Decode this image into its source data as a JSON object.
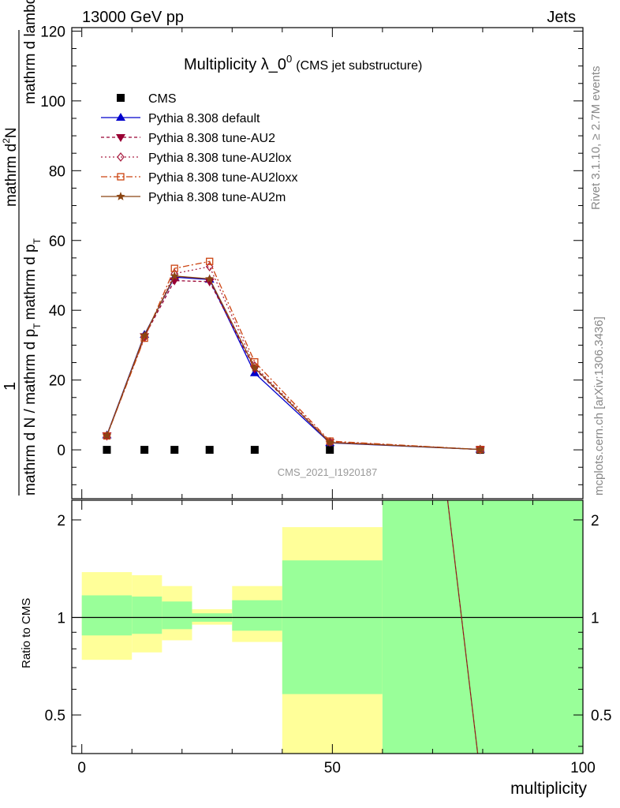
{
  "header": {
    "left": "13000 GeV pp",
    "right": "Jets"
  },
  "side_labels": {
    "rivet": "Rivet 3.1.10, ≥ 2.7M events",
    "mcplots": "mcplots.cern.ch [arXiv:1306.3436]"
  },
  "watermark": "CMS_2021_I1920187",
  "chart_data": [
    {
      "type": "line",
      "title_main": "Multiplicity λ_0",
      "title_sup": "0",
      "title_paren": "(CMS jet substructure)",
      "ylabel_numerator": "1",
      "ylabel_denominator": "mathrm d N / mathrm d p",
      "ylabel_denominator_sub": "T",
      "ylabel_denominator2": "mathrm d p",
      "ylabel_denominator2_sub": "T",
      "ylabel_rest": "mathrm d lambda",
      "ylabel_top": "mathrm d",
      "ylabel_top_sup": "2",
      "ylabel_top_end": "N",
      "ylim": [
        -14,
        121
      ],
      "xlim": [
        -2,
        100
      ],
      "y_ticks": [
        0,
        20,
        40,
        60,
        80,
        100,
        120
      ],
      "legend_position": "top-left",
      "x": [
        5,
        12.5,
        18.5,
        25.5,
        34.5,
        49.5,
        79.5
      ],
      "series": [
        {
          "name": "CMS",
          "color": "#000000",
          "marker": "square",
          "values": [
            0,
            0,
            0,
            0,
            0,
            0,
            0
          ]
        },
        {
          "name": "Pythia 8.308 default",
          "color": "#0000cc",
          "marker": "triangle-up",
          "dash": "",
          "values": [
            4.2,
            33.0,
            49.5,
            48.8,
            22.0,
            2.0,
            0.1
          ]
        },
        {
          "name": "Pythia 8.308 tune-AU2",
          "color": "#990033",
          "marker": "triangle-down",
          "dash": "4,3",
          "values": [
            4.1,
            32.5,
            48.5,
            48.2,
            23.2,
            2.2,
            0.1
          ]
        },
        {
          "name": "Pythia 8.308 tune-AU2lox",
          "color": "#aa2244",
          "marker": "diamond-open",
          "dash": "2,3",
          "values": [
            4.0,
            32.2,
            50.5,
            52.5,
            24.0,
            2.3,
            0.1
          ]
        },
        {
          "name": "Pythia 8.308 tune-AU2loxx",
          "color": "#cc4411",
          "marker": "square-open",
          "dash": "8,3,2,3",
          "values": [
            4.0,
            32.0,
            52.0,
            54.0,
            25.2,
            2.5,
            0.1
          ]
        },
        {
          "name": "Pythia 8.308 tune-AU2m",
          "color": "#8b4513",
          "marker": "star",
          "dash": "",
          "values": [
            4.1,
            32.8,
            49.8,
            49.0,
            23.5,
            2.1,
            0.1
          ]
        }
      ]
    },
    {
      "type": "area",
      "ylabel": "Ratio to CMS",
      "xlabel": "multiplicity",
      "scale": "log",
      "ylim": [
        0.38,
        2.3
      ],
      "xlim": [
        -2,
        100
      ],
      "y_ticks": [
        0.5,
        1,
        2
      ],
      "x_ticks": [
        0,
        50,
        100
      ],
      "bins": [
        {
          "x": [
            0,
            10
          ],
          "yellow": [
            0.74,
            1.38
          ],
          "green": [
            0.88,
            1.17
          ]
        },
        {
          "x": [
            10,
            16
          ],
          "yellow": [
            0.78,
            1.35
          ],
          "green": [
            0.89,
            1.16
          ]
        },
        {
          "x": [
            16,
            22
          ],
          "yellow": [
            0.85,
            1.25
          ],
          "green": [
            0.92,
            1.12
          ]
        },
        {
          "x": [
            22,
            30
          ],
          "yellow": [
            0.95,
            1.06
          ],
          "green": [
            0.97,
            1.03
          ]
        },
        {
          "x": [
            30,
            40
          ],
          "yellow": [
            0.84,
            1.25
          ],
          "green": [
            0.91,
            1.13
          ]
        },
        {
          "x": [
            40,
            60
          ],
          "yellow": [
            0.38,
            1.9
          ],
          "green": [
            0.58,
            1.5
          ]
        },
        {
          "x": [
            60,
            100
          ],
          "yellow": [
            0.38,
            2.3
          ],
          "green": [
            0.38,
            2.3
          ]
        }
      ],
      "mc_line": {
        "color": "#8b4513",
        "points": [
          [
            73,
            2.3
          ],
          [
            79,
            0.38
          ]
        ]
      }
    }
  ]
}
